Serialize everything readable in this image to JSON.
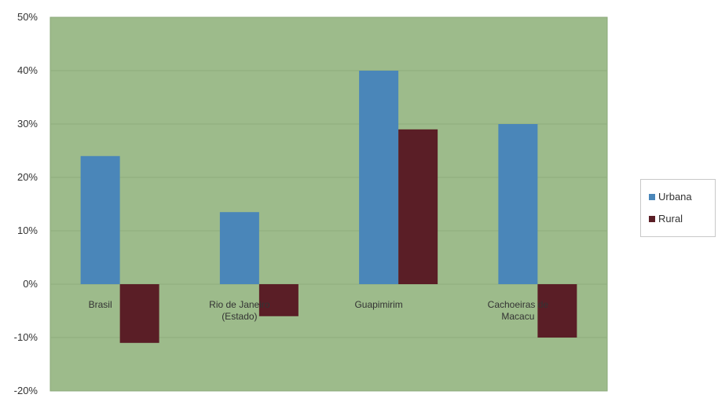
{
  "chart_data": {
    "type": "bar",
    "categories": [
      "Brasil",
      "Rio de Janeiro (Estado)",
      "Guapimirim",
      "Cachoeiras de Macacu"
    ],
    "category_lines": [
      [
        "Brasil"
      ],
      [
        "Rio de Janeiro",
        "(Estado)"
      ],
      [
        "Guapimirim"
      ],
      [
        "Cachoeiras de",
        "Macacu"
      ]
    ],
    "series": [
      {
        "name": "Urbana",
        "values": [
          24,
          13.5,
          40,
          30
        ],
        "color": "#4a86b9"
      },
      {
        "name": "Rural",
        "values": [
          -11,
          -6,
          29,
          -10
        ],
        "color": "#5a1e26"
      }
    ],
    "ylim": [
      -20,
      50
    ],
    "yticks": [
      50,
      40,
      30,
      20,
      10,
      0,
      -10,
      -20
    ],
    "ytick_labels": [
      "50%",
      "40%",
      "30%",
      "20%",
      "10%",
      "0%",
      "-10%",
      "-20%"
    ],
    "grid": true,
    "legend_position": "right",
    "plot_background": "#9dbb8b"
  }
}
